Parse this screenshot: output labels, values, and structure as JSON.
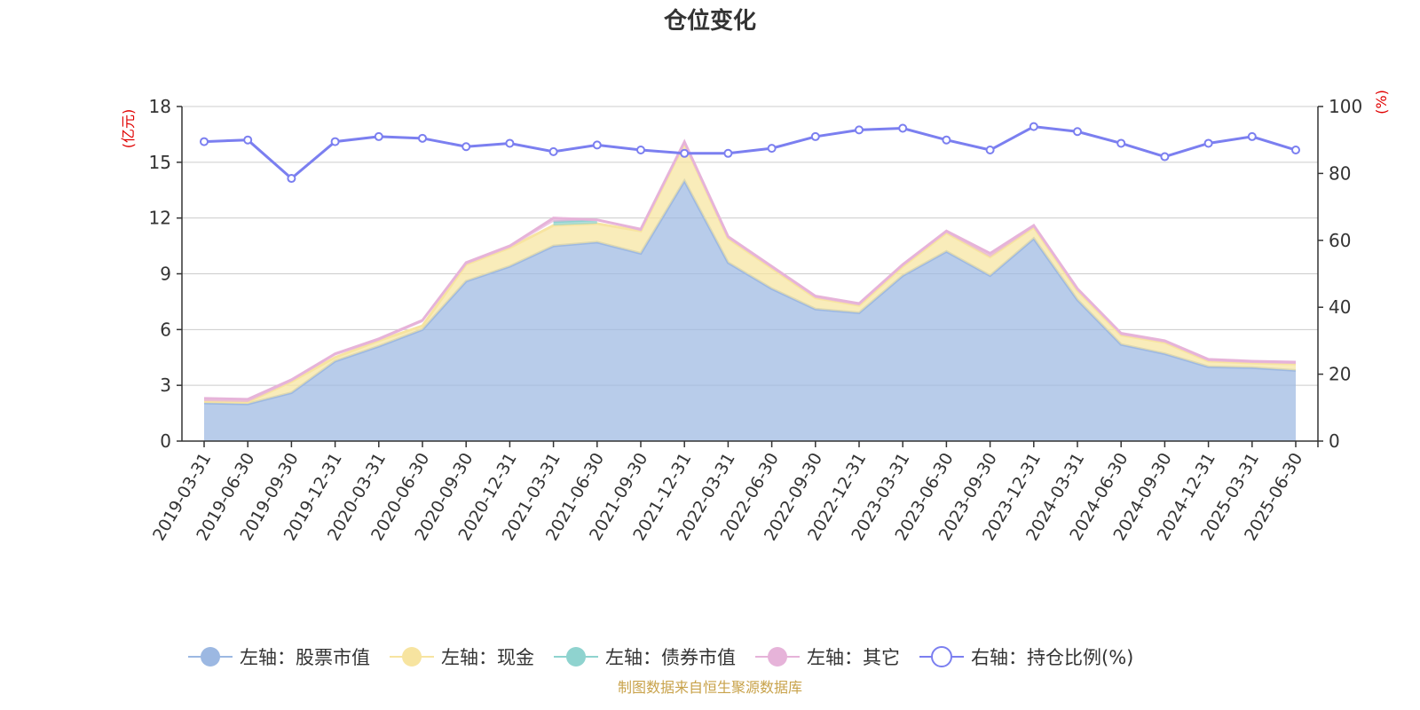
{
  "chart_data": {
    "type": "area",
    "title": "仓位变化",
    "left_unit": "(亿元)",
    "right_unit": "(%)",
    "y_left": {
      "min": 0,
      "max": 18,
      "ticks": [
        0,
        3,
        6,
        9,
        12,
        15,
        18
      ]
    },
    "y_right": {
      "min": 0,
      "max": 100,
      "ticks": [
        0,
        20,
        40,
        60,
        80,
        100
      ]
    },
    "grid": true,
    "legend_position": "bottom",
    "tick_labels": [
      "2019-03-31",
      "2019-06-30",
      "2019-09-30",
      "2019-12-31",
      "2020-03-31",
      "2020-06-30",
      "2020-09-30",
      "2020-12-31",
      "2021-03-31",
      "2021-06-30",
      "2021-09-30",
      "2021-12-31",
      "2022-03-31",
      "2022-06-30",
      "2022-09-30",
      "2022-12-31",
      "2023-03-31",
      "2023-06-30",
      "2023-09-30",
      "2023-12-31",
      "2024-03-31",
      "2024-06-30",
      "2024-09-30",
      "2024-12-31",
      "2025-03-31",
      "2025-06-30"
    ],
    "categories": [
      "2019-03-31",
      "2019-06-30",
      "2019-09-30",
      "2019-12-31",
      "2020-03-31",
      "2020-06-30",
      "2020-09-30",
      "2020-12-31",
      "2021-03-31",
      "2021-06-30",
      "2021-09-30",
      "2021-12-31",
      "2022-03-31",
      "2022-06-30",
      "2022-09-30",
      "2022-12-31",
      "2023-03-31",
      "2023-06-30",
      "2023-09-30",
      "2023-12-31",
      "2024-03-31",
      "2024-06-30",
      "2024-09-30",
      "2024-12-31",
      "2025-03-31",
      "2025-06-30"
    ],
    "series": [
      {
        "name": "左轴：股票市值",
        "axis": "left",
        "kind": "stacked-area",
        "color": "#9cb8e2",
        "values": [
          2.05,
          2.0,
          2.6,
          4.3,
          5.1,
          6.0,
          8.6,
          9.4,
          10.5,
          10.7,
          10.1,
          14.0,
          9.6,
          8.2,
          7.1,
          6.9,
          8.9,
          10.2,
          8.9,
          10.9,
          7.6,
          5.2,
          4.7,
          4.0,
          3.95,
          3.8
        ]
      },
      {
        "name": "左轴：现金",
        "axis": "left",
        "kind": "stacked-area",
        "color": "#f7e4a0",
        "values": [
          0.1,
          0.1,
          0.6,
          0.2,
          0.3,
          0.2,
          0.9,
          1.0,
          1.1,
          1.0,
          1.2,
          2.0,
          1.3,
          1.1,
          0.6,
          0.4,
          0.5,
          1.0,
          1.0,
          0.6,
          0.5,
          0.5,
          0.6,
          0.3,
          0.25,
          0.35
        ]
      },
      {
        "name": "左轴：债券市值",
        "axis": "left",
        "kind": "stacked-area",
        "color": "#8fd3cf",
        "values": [
          null,
          null,
          null,
          0.1,
          null,
          0.2,
          null,
          null,
          0.2,
          0.2,
          null,
          null,
          null,
          null,
          null,
          null,
          null,
          null,
          null,
          null,
          null,
          null,
          null,
          null,
          null,
          null
        ]
      },
      {
        "name": "左轴：其它",
        "axis": "left",
        "kind": "stacked-area",
        "color": "#e6b3d9",
        "values": [
          0.15,
          0.15,
          0.1,
          0.1,
          0.1,
          0.1,
          0.1,
          0.1,
          0.2,
          0.0,
          0.1,
          0.1,
          0.1,
          0.1,
          0.1,
          0.1,
          0.1,
          0.1,
          0.2,
          0.1,
          0.1,
          0.1,
          0.1,
          0.1,
          0.1,
          0.1
        ]
      },
      {
        "name": "右轴：持仓比例(%)",
        "axis": "right",
        "kind": "line",
        "color": "#7b7ff0",
        "values": [
          89.5,
          90.0,
          78.5,
          89.5,
          91.0,
          90.5,
          88.0,
          89.0,
          86.5,
          88.5,
          87.0,
          86.0,
          86.0,
          87.5,
          91.0,
          93.0,
          93.5,
          90.0,
          87.0,
          94.0,
          92.5,
          89.0,
          85.0,
          89.0,
          91.0,
          87.0
        ]
      }
    ],
    "source": "制图数据来自恒生聚源数据库"
  }
}
